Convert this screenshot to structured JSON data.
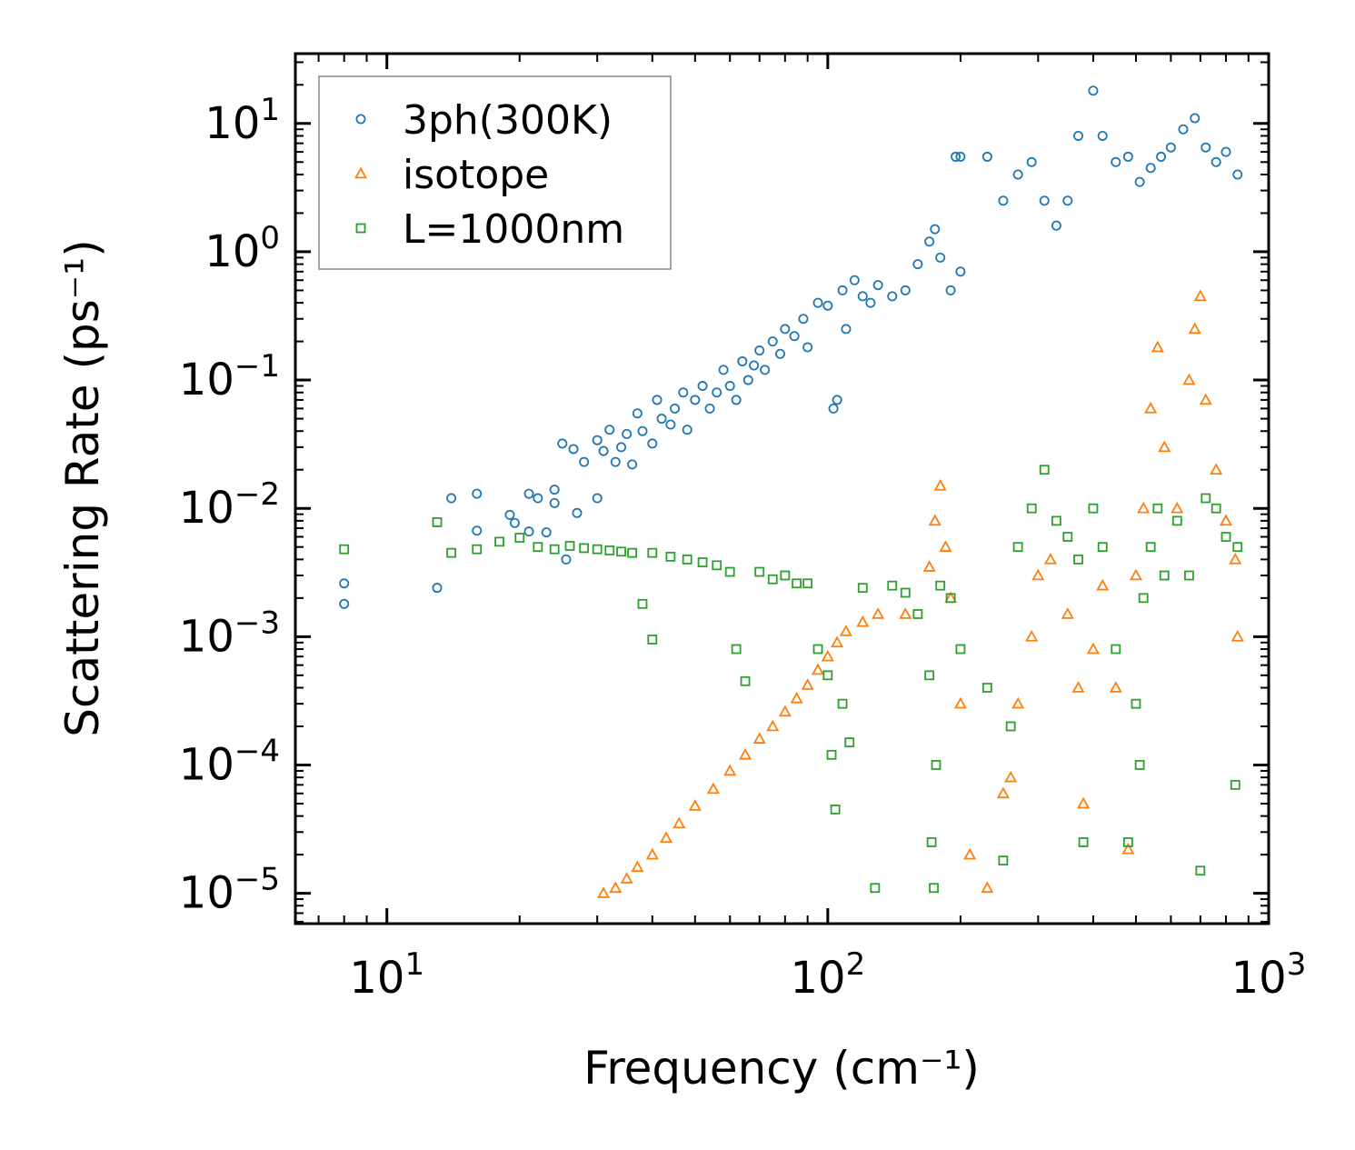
{
  "chart_data": {
    "type": "scatter",
    "title": "",
    "xlabel": "Frequency (cm⁻¹)",
    "ylabel": "Scattering Rate (ps⁻¹)",
    "xscale": "log",
    "yscale": "log",
    "xlim": [
      6.2,
      1000
    ],
    "ylim": [
      5.8e-06,
      35
    ],
    "x_ticks": [
      {
        "value": 10,
        "base": "10",
        "exp": "1"
      },
      {
        "value": 100,
        "base": "10",
        "exp": "2"
      },
      {
        "value": 1000,
        "base": "10",
        "exp": "3"
      }
    ],
    "y_ticks": [
      {
        "value": 1e-05,
        "base": "10",
        "exp": "−5"
      },
      {
        "value": 0.0001,
        "base": "10",
        "exp": "−4"
      },
      {
        "value": 0.001,
        "base": "10",
        "exp": "−3"
      },
      {
        "value": 0.01,
        "base": "10",
        "exp": "−2"
      },
      {
        "value": 0.1,
        "base": "10",
        "exp": "−1"
      },
      {
        "value": 1,
        "base": "10",
        "exp": "0"
      },
      {
        "value": 10,
        "base": "10",
        "exp": "1"
      }
    ],
    "legend_position": "top-left",
    "series": [
      {
        "name": "3ph(300K)",
        "marker": "circle",
        "color": "#1f77b4",
        "points": [
          [
            8,
            0.0026
          ],
          [
            8,
            0.0018
          ],
          [
            13,
            0.0024
          ],
          [
            14,
            0.012
          ],
          [
            16,
            0.0067
          ],
          [
            16,
            0.013
          ],
          [
            19,
            0.0089
          ],
          [
            19.5,
            0.0077
          ],
          [
            21,
            0.013
          ],
          [
            21,
            0.0066
          ],
          [
            22,
            0.012
          ],
          [
            23,
            0.0065
          ],
          [
            24,
            0.014
          ],
          [
            24,
            0.011
          ],
          [
            25,
            0.032
          ],
          [
            25.5,
            0.004
          ],
          [
            26.5,
            0.029
          ],
          [
            27,
            0.0092
          ],
          [
            28,
            0.023
          ],
          [
            30,
            0.034
          ],
          [
            30,
            0.012
          ],
          [
            31,
            0.028
          ],
          [
            32,
            0.041
          ],
          [
            33,
            0.023
          ],
          [
            34,
            0.03
          ],
          [
            35,
            0.038
          ],
          [
            36,
            0.022
          ],
          [
            37,
            0.055
          ],
          [
            38,
            0.04
          ],
          [
            40,
            0.032
          ],
          [
            41,
            0.07
          ],
          [
            42,
            0.05
          ],
          [
            44,
            0.045
          ],
          [
            45,
            0.06
          ],
          [
            47,
            0.08
          ],
          [
            48,
            0.041
          ],
          [
            50,
            0.07
          ],
          [
            52,
            0.09
          ],
          [
            54,
            0.06
          ],
          [
            56,
            0.08
          ],
          [
            58,
            0.12
          ],
          [
            60,
            0.09
          ],
          [
            62,
            0.07
          ],
          [
            64,
            0.14
          ],
          [
            66,
            0.1
          ],
          [
            68,
            0.13
          ],
          [
            70,
            0.17
          ],
          [
            72,
            0.12
          ],
          [
            75,
            0.2
          ],
          [
            78,
            0.16
          ],
          [
            80,
            0.25
          ],
          [
            84,
            0.22
          ],
          [
            88,
            0.3
          ],
          [
            90,
            0.18
          ],
          [
            95,
            0.4
          ],
          [
            100,
            0.38
          ],
          [
            103,
            0.06
          ],
          [
            105,
            0.07
          ],
          [
            108,
            0.5
          ],
          [
            110,
            0.25
          ],
          [
            115,
            0.6
          ],
          [
            120,
            0.45
          ],
          [
            125,
            0.4
          ],
          [
            130,
            0.55
          ],
          [
            140,
            0.45
          ],
          [
            150,
            0.5
          ],
          [
            160,
            0.8
          ],
          [
            170,
            1.2
          ],
          [
            175,
            1.5
          ],
          [
            180,
            0.9
          ],
          [
            190,
            0.5
          ],
          [
            200,
            0.7
          ],
          [
            195,
            5.5
          ],
          [
            200,
            5.5
          ],
          [
            230,
            5.5
          ],
          [
            250,
            2.5
          ],
          [
            270,
            4.0
          ],
          [
            290,
            5.0
          ],
          [
            310,
            2.5
          ],
          [
            330,
            1.6
          ],
          [
            350,
            2.5
          ],
          [
            370,
            8.0
          ],
          [
            400,
            18.0
          ],
          [
            420,
            8.0
          ],
          [
            450,
            5.0
          ],
          [
            480,
            5.5
          ],
          [
            510,
            3.5
          ],
          [
            540,
            4.5
          ],
          [
            570,
            5.5
          ],
          [
            600,
            6.5
          ],
          [
            640,
            9.0
          ],
          [
            680,
            11.0
          ],
          [
            720,
            6.5
          ],
          [
            760,
            5.0
          ],
          [
            800,
            6.0
          ],
          [
            850,
            4.0
          ]
        ]
      },
      {
        "name": "isotope",
        "marker": "triangle",
        "color": "#ff7f0e",
        "points": [
          [
            31,
            1e-05
          ],
          [
            33,
            1.1e-05
          ],
          [
            35,
            1.3e-05
          ],
          [
            37,
            1.6e-05
          ],
          [
            40,
            2e-05
          ],
          [
            43,
            2.7e-05
          ],
          [
            46,
            3.5e-05
          ],
          [
            50,
            4.8e-05
          ],
          [
            55,
            6.5e-05
          ],
          [
            60,
            9e-05
          ],
          [
            65,
            0.00012
          ],
          [
            70,
            0.00016
          ],
          [
            75,
            0.0002
          ],
          [
            80,
            0.00026
          ],
          [
            85,
            0.00033
          ],
          [
            90,
            0.00042
          ],
          [
            95,
            0.00055
          ],
          [
            100,
            0.0007
          ],
          [
            105,
            0.0009
          ],
          [
            110,
            0.0011
          ],
          [
            120,
            0.0013
          ],
          [
            130,
            0.0015
          ],
          [
            150,
            0.0015
          ],
          [
            170,
            0.0035
          ],
          [
            175,
            0.008
          ],
          [
            180,
            0.015
          ],
          [
            185,
            0.005
          ],
          [
            190,
            0.002
          ],
          [
            200,
            0.0003
          ],
          [
            210,
            2e-05
          ],
          [
            230,
            1.1e-05
          ],
          [
            250,
            6e-05
          ],
          [
            260,
            8e-05
          ],
          [
            270,
            0.0003
          ],
          [
            290,
            0.001
          ],
          [
            300,
            0.003
          ],
          [
            320,
            0.004
          ],
          [
            350,
            0.0015
          ],
          [
            370,
            0.0004
          ],
          [
            380,
            5e-05
          ],
          [
            400,
            0.0008
          ],
          [
            420,
            0.0025
          ],
          [
            450,
            0.0004
          ],
          [
            480,
            2.2e-05
          ],
          [
            500,
            0.003
          ],
          [
            520,
            0.01
          ],
          [
            540,
            0.06
          ],
          [
            560,
            0.18
          ],
          [
            580,
            0.03
          ],
          [
            620,
            0.01
          ],
          [
            660,
            0.1
          ],
          [
            680,
            0.25
          ],
          [
            700,
            0.45
          ],
          [
            720,
            0.07
          ],
          [
            760,
            0.02
          ],
          [
            800,
            0.008
          ],
          [
            840,
            0.004
          ],
          [
            850,
            0.001
          ]
        ]
      },
      {
        "name": "L=1000nm",
        "marker": "square",
        "color": "#2ca02c",
        "points": [
          [
            8,
            0.0048
          ],
          [
            13,
            0.0078
          ],
          [
            14,
            0.0045
          ],
          [
            16,
            0.0048
          ],
          [
            18,
            0.0055
          ],
          [
            20,
            0.0059
          ],
          [
            22,
            0.005
          ],
          [
            24,
            0.0048
          ],
          [
            26,
            0.0051
          ],
          [
            28,
            0.0049
          ],
          [
            30,
            0.0048
          ],
          [
            32,
            0.0047
          ],
          [
            34,
            0.0046
          ],
          [
            36,
            0.0045
          ],
          [
            38,
            0.0018
          ],
          [
            40,
            0.00095
          ],
          [
            40,
            0.0045
          ],
          [
            44,
            0.0042
          ],
          [
            48,
            0.004
          ],
          [
            52,
            0.0038
          ],
          [
            56,
            0.0036
          ],
          [
            60,
            0.0032
          ],
          [
            62,
            0.0008
          ],
          [
            65,
            0.00045
          ],
          [
            70,
            0.0032
          ],
          [
            75,
            0.0028
          ],
          [
            80,
            0.003
          ],
          [
            85,
            0.0026
          ],
          [
            90,
            0.0026
          ],
          [
            95,
            0.0008
          ],
          [
            100,
            0.0005
          ],
          [
            102,
            0.00012
          ],
          [
            104,
            4.5e-05
          ],
          [
            108,
            0.0003
          ],
          [
            112,
            0.00015
          ],
          [
            120,
            0.0024
          ],
          [
            128,
            1.1e-05
          ],
          [
            140,
            0.0025
          ],
          [
            150,
            0.0022
          ],
          [
            160,
            0.0015
          ],
          [
            170,
            0.0005
          ],
          [
            172,
            2.5e-05
          ],
          [
            174,
            1.1e-05
          ],
          [
            176,
            0.0001
          ],
          [
            180,
            0.0025
          ],
          [
            190,
            0.002
          ],
          [
            200,
            0.0008
          ],
          [
            230,
            0.0004
          ],
          [
            250,
            1.8e-05
          ],
          [
            260,
            0.0002
          ],
          [
            270,
            0.005
          ],
          [
            290,
            0.01
          ],
          [
            310,
            0.02
          ],
          [
            330,
            0.008
          ],
          [
            350,
            0.006
          ],
          [
            370,
            0.004
          ],
          [
            380,
            2.5e-05
          ],
          [
            400,
            0.01
          ],
          [
            420,
            0.005
          ],
          [
            450,
            0.0008
          ],
          [
            480,
            2.5e-05
          ],
          [
            500,
            0.0003
          ],
          [
            510,
            0.0001
          ],
          [
            520,
            0.002
          ],
          [
            540,
            0.005
          ],
          [
            560,
            0.01
          ],
          [
            580,
            0.003
          ],
          [
            620,
            0.008
          ],
          [
            660,
            0.003
          ],
          [
            700,
            1.5e-05
          ],
          [
            720,
            0.012
          ],
          [
            760,
            0.01
          ],
          [
            800,
            0.006
          ],
          [
            840,
            7e-05
          ],
          [
            850,
            0.005
          ]
        ]
      }
    ]
  }
}
